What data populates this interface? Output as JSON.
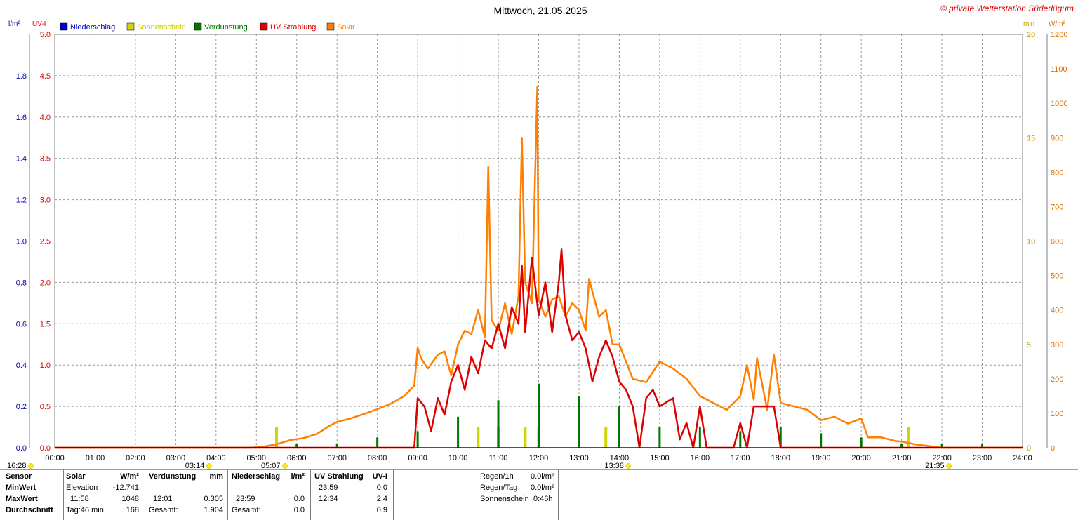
{
  "title": "Mittwoch, 21.05.2025",
  "copyright": "© private Wetterstation Süderlügum",
  "left_axis_units": {
    "rain": "l/m²",
    "uv": "UV-I"
  },
  "right_axis_units": {
    "min": "min",
    "solar": "W/m²"
  },
  "legend": [
    {
      "label": "Niederschlag",
      "color": "#0000cc"
    },
    {
      "label": "Sonnenschein",
      "color": "#d4d400"
    },
    {
      "label": "Verdunstung",
      "color": "#007700"
    },
    {
      "label": "UV Strahlung",
      "color": "#dd0000"
    },
    {
      "label": "Solar",
      "color": "#ff8000"
    }
  ],
  "sun_markers": {
    "sunset_prev": "16:28",
    "twilight_morning": "03:14",
    "sunrise": "05:07",
    "solar_noon": "13:38",
    "sunset": "21:35"
  },
  "chart_data": {
    "type": "line",
    "x_axis": {
      "unit": "time",
      "range": [
        "00:00",
        "24:00"
      ],
      "ticks": [
        "00:00",
        "01:00",
        "02:00",
        "03:00",
        "04:00",
        "05:00",
        "06:00",
        "07:00",
        "08:00",
        "09:00",
        "10:00",
        "11:00",
        "12:00",
        "13:00",
        "14:00",
        "15:00",
        "16:00",
        "17:00",
        "18:00",
        "19:00",
        "20:00",
        "21:00",
        "22:00",
        "23:00",
        "24:00"
      ]
    },
    "y_axes": {
      "rain": {
        "ticks": [
          "0.0",
          "0.2",
          "0.4",
          "0.6",
          "0.8",
          "1.0",
          "1.2",
          "1.4",
          "1.6",
          "1.8"
        ],
        "range": [
          0,
          2.0
        ]
      },
      "uv": {
        "ticks": [
          "0.0",
          "0.5",
          "1.0",
          "1.5",
          "2.0",
          "2.5",
          "3.0",
          "3.5",
          "4.0",
          "4.5",
          "5.0"
        ],
        "range": [
          0,
          5.0
        ]
      },
      "sunshine": {
        "ticks": [
          "0",
          "5",
          "10",
          "15",
          "20"
        ],
        "range": [
          0,
          20
        ]
      },
      "solar": {
        "ticks": [
          "0",
          "100",
          "200",
          "300",
          "400",
          "500",
          "600",
          "700",
          "800",
          "900",
          "1000",
          "1100",
          "1200"
        ],
        "range": [
          0,
          1200
        ]
      }
    },
    "grid": true,
    "series": [
      {
        "name": "Solar",
        "axis": "solar",
        "color": "#ff8000",
        "points": [
          [
            "00:00",
            0
          ],
          [
            "04:50",
            0
          ],
          [
            "05:07",
            2
          ],
          [
            "05:30",
            10
          ],
          [
            "05:50",
            22
          ],
          [
            "06:10",
            28
          ],
          [
            "06:30",
            40
          ],
          [
            "06:50",
            65
          ],
          [
            "07:00",
            75
          ],
          [
            "07:20",
            85
          ],
          [
            "07:40",
            98
          ],
          [
            "08:00",
            112
          ],
          [
            "08:20",
            128
          ],
          [
            "08:40",
            150
          ],
          [
            "08:55",
            180
          ],
          [
            "09:00",
            290
          ],
          [
            "09:05",
            260
          ],
          [
            "09:15",
            230
          ],
          [
            "09:30",
            270
          ],
          [
            "09:40",
            280
          ],
          [
            "09:50",
            210
          ],
          [
            "10:00",
            300
          ],
          [
            "10:10",
            340
          ],
          [
            "10:20",
            330
          ],
          [
            "10:30",
            400
          ],
          [
            "10:40",
            320
          ],
          [
            "10:45",
            815
          ],
          [
            "10:50",
            370
          ],
          [
            "11:00",
            340
          ],
          [
            "11:10",
            420
          ],
          [
            "11:20",
            330
          ],
          [
            "11:30",
            440
          ],
          [
            "11:35",
            900
          ],
          [
            "11:40",
            480
          ],
          [
            "11:50",
            420
          ],
          [
            "11:58",
            1048
          ],
          [
            "12:00",
            430
          ],
          [
            "12:10",
            380
          ],
          [
            "12:20",
            430
          ],
          [
            "12:30",
            440
          ],
          [
            "12:40",
            380
          ],
          [
            "12:50",
            420
          ],
          [
            "13:00",
            400
          ],
          [
            "13:10",
            340
          ],
          [
            "13:15",
            490
          ],
          [
            "13:30",
            380
          ],
          [
            "13:40",
            400
          ],
          [
            "13:50",
            300
          ],
          [
            "14:00",
            300
          ],
          [
            "14:20",
            200
          ],
          [
            "14:40",
            190
          ],
          [
            "15:00",
            250
          ],
          [
            "15:20",
            230
          ],
          [
            "15:40",
            200
          ],
          [
            "16:00",
            150
          ],
          [
            "16:20",
            130
          ],
          [
            "16:40",
            110
          ],
          [
            "17:00",
            150
          ],
          [
            "17:10",
            240
          ],
          [
            "17:20",
            140
          ],
          [
            "17:25",
            260
          ],
          [
            "17:40",
            110
          ],
          [
            "17:50",
            270
          ],
          [
            "18:00",
            130
          ],
          [
            "18:20",
            120
          ],
          [
            "18:40",
            110
          ],
          [
            "19:00",
            80
          ],
          [
            "19:20",
            90
          ],
          [
            "19:40",
            70
          ],
          [
            "20:00",
            85
          ],
          [
            "20:10",
            30
          ],
          [
            "20:30",
            30
          ],
          [
            "20:50",
            20
          ],
          [
            "21:00",
            18
          ],
          [
            "21:20",
            10
          ],
          [
            "21:40",
            5
          ],
          [
            "22:00",
            0
          ],
          [
            "24:00",
            0
          ]
        ]
      },
      {
        "name": "UV Strahlung",
        "axis": "uv",
        "color": "#dd0000",
        "points": [
          [
            "00:00",
            0
          ],
          [
            "08:55",
            0
          ],
          [
            "09:00",
            0.6
          ],
          [
            "09:10",
            0.5
          ],
          [
            "09:20",
            0.2
          ],
          [
            "09:30",
            0.6
          ],
          [
            "09:40",
            0.4
          ],
          [
            "09:50",
            0.8
          ],
          [
            "10:00",
            1.0
          ],
          [
            "10:10",
            0.7
          ],
          [
            "10:20",
            1.1
          ],
          [
            "10:30",
            0.9
          ],
          [
            "10:40",
            1.3
          ],
          [
            "10:50",
            1.2
          ],
          [
            "11:00",
            1.5
          ],
          [
            "11:10",
            1.2
          ],
          [
            "11:20",
            1.7
          ],
          [
            "11:30",
            1.5
          ],
          [
            "11:35",
            2.2
          ],
          [
            "11:40",
            1.4
          ],
          [
            "11:50",
            2.3
          ],
          [
            "12:00",
            1.6
          ],
          [
            "12:10",
            2.0
          ],
          [
            "12:20",
            1.4
          ],
          [
            "12:30",
            2.0
          ],
          [
            "12:34",
            2.4
          ],
          [
            "12:40",
            1.6
          ],
          [
            "12:50",
            1.3
          ],
          [
            "13:00",
            1.4
          ],
          [
            "13:10",
            1.2
          ],
          [
            "13:20",
            0.8
          ],
          [
            "13:30",
            1.1
          ],
          [
            "13:40",
            1.3
          ],
          [
            "13:50",
            1.1
          ],
          [
            "14:00",
            0.8
          ],
          [
            "14:10",
            0.7
          ],
          [
            "14:20",
            0.5
          ],
          [
            "14:30",
            0.0
          ],
          [
            "14:40",
            0.6
          ],
          [
            "14:50",
            0.7
          ],
          [
            "15:00",
            0.5
          ],
          [
            "15:20",
            0.6
          ],
          [
            "15:30",
            0.1
          ],
          [
            "15:40",
            0.3
          ],
          [
            "15:50",
            0.0
          ],
          [
            "16:00",
            0.5
          ],
          [
            "16:10",
            0.0
          ],
          [
            "16:50",
            0.0
          ],
          [
            "17:00",
            0.3
          ],
          [
            "17:10",
            0.0
          ],
          [
            "17:20",
            0.5
          ],
          [
            "17:30",
            0.5
          ],
          [
            "17:50",
            0.5
          ],
          [
            "18:00",
            0.0
          ],
          [
            "24:00",
            0
          ]
        ]
      },
      {
        "name": "Sonnenschein",
        "axis": "sunshine",
        "color": "#d4d400",
        "bars": [
          [
            "05:30",
            1
          ],
          [
            "10:30",
            1
          ],
          [
            "11:00",
            1
          ],
          [
            "11:40",
            1
          ],
          [
            "12:00",
            1
          ],
          [
            "13:40",
            1
          ],
          [
            "21:10",
            1
          ]
        ]
      },
      {
        "name": "Verdunstung",
        "axis": "rain",
        "color": "#007700",
        "bars": [
          [
            "06:00",
            0.02
          ],
          [
            "07:00",
            0.02
          ],
          [
            "08:00",
            0.05
          ],
          [
            "09:00",
            0.08
          ],
          [
            "10:00",
            0.15
          ],
          [
            "11:00",
            0.23
          ],
          [
            "12:00",
            0.31
          ],
          [
            "13:00",
            0.25
          ],
          [
            "14:00",
            0.2
          ],
          [
            "15:00",
            0.1
          ],
          [
            "16:00",
            0.1
          ],
          [
            "17:00",
            0.08
          ],
          [
            "18:00",
            0.1
          ],
          [
            "19:00",
            0.07
          ],
          [
            "20:00",
            0.05
          ],
          [
            "21:00",
            0.02
          ],
          [
            "22:00",
            0.02
          ],
          [
            "23:00",
            0.02
          ]
        ]
      },
      {
        "name": "Niederschlag",
        "axis": "rain",
        "color": "#0000cc",
        "points": [
          [
            "00:00",
            0
          ],
          [
            "24:00",
            0
          ]
        ]
      }
    ]
  },
  "table": {
    "rows": [
      "Sensor",
      "MinWert",
      "MaxWert",
      "Durchschnitt"
    ],
    "solar": {
      "header": "Solar",
      "unit": "W/m²",
      "min_label": "Elevation",
      "min_value": "-12.741",
      "max_time": "11:58",
      "max_value": "1048",
      "avg_label": "Tag:46 min.",
      "avg_value": "168"
    },
    "verdunstung": {
      "header": "Verdunstung",
      "unit": "mm",
      "max_time": "12:01",
      "max_value": "0.305",
      "sum_label": "Gesamt:",
      "sum_value": "1.904"
    },
    "niederschlag": {
      "header": "Niederschlag",
      "unit": "l/m²",
      "max_time": "23:59",
      "max_value": "0.0",
      "sum_label": "Gesamt:",
      "sum_value": "0.0"
    },
    "uv": {
      "header": "UV Strahlung",
      "unit": "UV-I",
      "min_time": "23:59",
      "min_value": "0.0",
      "max_time": "12:34",
      "max_value": "2.4",
      "avg_value": "0.9"
    },
    "summary": {
      "regen1h_label": "Regen/1h",
      "regen1h_value": "0.0l/m²",
      "regentag_label": "Regen/Tag",
      "regentag_value": "0.0l/m²",
      "sonne_label": "Sonnenschein",
      "sonne_value": "0:46h"
    }
  }
}
